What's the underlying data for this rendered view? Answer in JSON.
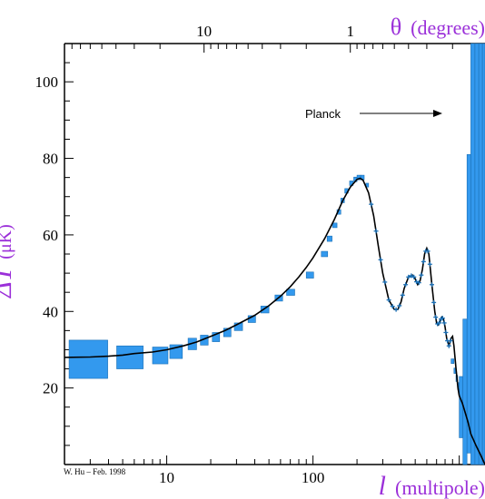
{
  "chart_data": {
    "type": "scatter",
    "xscale": "log",
    "xlim": [
      2,
      1500
    ],
    "ylim": [
      0,
      110
    ],
    "x_ticks": [
      10,
      100
    ],
    "y_ticks": [
      20,
      40,
      60,
      80,
      100
    ],
    "top_ticks": [
      10,
      1
    ],
    "xlabel_italic": "l",
    "xlabel_rest": "(multipole)",
    "ylabel_symbol": "ΔT",
    "ylabel_unit": "(μK)",
    "top_label_symbol": "θ",
    "top_label_rest": "(degrees)",
    "credit": "W. Hu – Feb. 1998",
    "annotation": "Planck",
    "colors": {
      "error_box": "#3399ee",
      "curve": "#000000",
      "label": "#9b30d9"
    },
    "theory_curve": {
      "x": [
        2,
        3,
        4,
        5,
        6,
        8,
        10,
        13,
        16,
        20,
        25,
        30,
        40,
        50,
        60,
        70,
        80,
        90,
        100,
        120,
        140,
        160,
        180,
        200,
        210,
        220,
        240,
        260,
        280,
        300,
        330,
        360,
        380,
        400,
        420,
        450,
        480,
        500,
        520,
        540,
        560,
        580,
        600,
        620,
        650,
        680,
        700,
        720,
        740,
        760,
        780,
        800,
        820,
        850,
        880,
        900,
        920,
        950,
        980,
        1000,
        1050,
        1100,
        1150,
        1200,
        1250,
        1300,
        1400,
        1500
      ],
      "y": [
        28,
        28.1,
        28.3,
        28.6,
        29,
        29.4,
        30,
        31,
        32,
        33.5,
        35,
        36.5,
        39,
        41.5,
        44,
        46.5,
        49,
        51.5,
        54,
        59,
        64,
        69,
        72.5,
        74.5,
        74.8,
        74.3,
        71,
        65,
        57,
        50,
        43,
        40.5,
        40.5,
        42.5,
        46,
        49,
        49.5,
        48.5,
        47,
        48,
        51,
        55,
        56.5,
        55,
        47,
        40,
        37,
        36.5,
        37.5,
        38.5,
        38,
        36,
        33,
        31,
        33,
        33.5,
        31,
        25,
        20,
        18,
        16,
        13.5,
        11,
        8,
        6.5,
        5,
        2.5,
        0
      ]
    },
    "data_boxes": [
      {
        "l_lo": 2.15,
        "l_hi": 3.95,
        "y": 27.5,
        "err": 5
      },
      {
        "l_lo": 4.55,
        "l_hi": 6.9,
        "y": 28,
        "err": 3
      },
      {
        "l_lo": 8,
        "l_hi": 10.2,
        "y": 28.5,
        "err": 2.2
      },
      {
        "l_lo": 10.5,
        "l_hi": 12.8,
        "y": 29.5,
        "err": 1.8
      },
      {
        "l_lo": 14,
        "l_hi": 16,
        "y": 31.5,
        "err": 1.5
      },
      {
        "l_lo": 17,
        "l_hi": 19.2,
        "y": 32.5,
        "err": 1.3
      },
      {
        "l_lo": 20.5,
        "l_hi": 23,
        "y": 33.3,
        "err": 1.2
      },
      {
        "l_lo": 24.5,
        "l_hi": 27.5,
        "y": 34.5,
        "err": 1.1
      },
      {
        "l_lo": 29,
        "l_hi": 33,
        "y": 36,
        "err": 1
      },
      {
        "l_lo": 36,
        "l_hi": 40.5,
        "y": 38,
        "err": 0.9
      },
      {
        "l_lo": 44,
        "l_hi": 50,
        "y": 40.5,
        "err": 0.9
      },
      {
        "l_lo": 55,
        "l_hi": 62,
        "y": 43.5,
        "err": 0.8
      },
      {
        "l_lo": 66,
        "l_hi": 75,
        "y": 45,
        "err": 0.8
      },
      {
        "l_lo": 90,
        "l_hi": 101,
        "y": 49.5,
        "err": 0.8
      },
      {
        "l_lo": 114,
        "l_hi": 126,
        "y": 55,
        "err": 0.7
      },
      {
        "l_lo": 125,
        "l_hi": 135,
        "y": 59,
        "err": 0.7
      },
      {
        "l_lo": 136,
        "l_hi": 146,
        "y": 62.5,
        "err": 0.6
      },
      {
        "l_lo": 146,
        "l_hi": 155,
        "y": 66,
        "err": 0.6
      },
      {
        "l_lo": 155,
        "l_hi": 164,
        "y": 69,
        "err": 0.6
      },
      {
        "l_lo": 165,
        "l_hi": 174,
        "y": 71.5,
        "err": 0.6
      },
      {
        "l_lo": 178,
        "l_hi": 188,
        "y": 73.5,
        "err": 0.6
      },
      {
        "l_lo": 190,
        "l_hi": 200,
        "y": 74.5,
        "err": 0.6
      },
      {
        "l_lo": 200,
        "l_hi": 212,
        "y": 75,
        "err": 0.6
      },
      {
        "l_lo": 212,
        "l_hi": 224,
        "y": 75,
        "err": 0.6
      },
      {
        "l_lo": 230,
        "l_hi": 240,
        "y": 73,
        "err": 0.5
      },
      {
        "l_lo": 880,
        "l_hi": 920,
        "y": 27,
        "err": 0.6
      },
      {
        "l_lo": 920,
        "l_hi": 950,
        "y": 24.5,
        "err": 0.7
      },
      {
        "l_lo": 950,
        "l_hi": 975,
        "y": 22.5,
        "err": 0.8
      },
      {
        "l_lo": 975,
        "l_hi": 1000,
        "y": 20.5,
        "err": 0.9
      }
    ],
    "planck_points": [
      250,
      270,
      290,
      310,
      330,
      350,
      370,
      390,
      410,
      430,
      450,
      470,
      490,
      510,
      530,
      550,
      570,
      590,
      610,
      630,
      650,
      670,
      690,
      710,
      730,
      750,
      770,
      790,
      810,
      830,
      850,
      870
    ],
    "planck_bars": [
      {
        "l_lo": 1000,
        "l_hi": 1060,
        "y": 15,
        "err": 8
      },
      {
        "l_lo": 1060,
        "l_hi": 1130,
        "y": 19,
        "err": 19
      },
      {
        "l_lo": 1130,
        "l_hi": 1200,
        "y": 42,
        "err": 39
      },
      {
        "l_lo": 1200,
        "l_hi": 1280,
        "y": 55,
        "err": 55
      },
      {
        "l_lo": 1280,
        "l_hi": 1360,
        "y": 55,
        "err": 55
      },
      {
        "l_lo": 1360,
        "l_hi": 1440,
        "y": 55,
        "err": 55
      },
      {
        "l_lo": 1440,
        "l_hi": 1500,
        "y": 55,
        "err": 55
      }
    ]
  }
}
